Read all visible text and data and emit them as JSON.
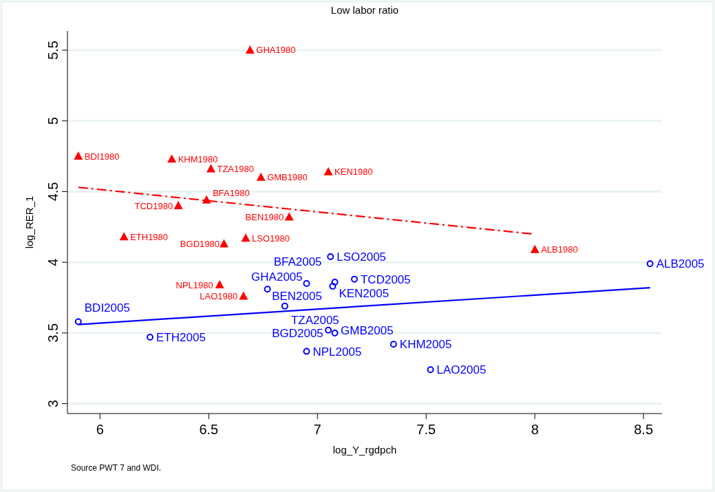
{
  "chart_data": {
    "type": "scatter",
    "title": "Low labor ratio",
    "xlabel": "log_Y_rgdpch",
    "ylabel": "log_RER_1",
    "annotations": [
      "Source PWT 7 and WDI."
    ],
    "xlim": [
      5.85,
      8.585
    ],
    "xticks": [
      6,
      6.5,
      7,
      7.5,
      8,
      8.5
    ],
    "ylim": [
      2.93,
      5.636
    ],
    "yticks": [
      3,
      3.5,
      4,
      4.5,
      5,
      5.5
    ],
    "grid": "y",
    "series": [
      {
        "color": "#ff0000",
        "marker": "triangle",
        "x": [
          6.69,
          5.9,
          6.33,
          6.51,
          6.74,
          7.05,
          6.49,
          6.36,
          6.87,
          6.11,
          6.67,
          6.57,
          8.0,
          6.55,
          6.66
        ],
        "values": [
          5.5,
          4.75,
          4.73,
          4.66,
          4.6,
          4.64,
          4.44,
          4.4,
          4.32,
          4.18,
          4.17,
          4.13,
          4.09,
          3.84,
          3.76
        ],
        "value_labels": [
          "GHA1980",
          "BDI1980",
          "KHM1980",
          "TZA1980",
          "GMB1980",
          "KEN1980",
          "BFA1980",
          "TCD1980",
          "BEN1980",
          "ETH1980",
          "LSO1980",
          "BGD1980",
          "ALB1980",
          "NPL1980",
          "LAO1980"
        ]
      },
      {
        "color": "#0000ff",
        "marker": "circle",
        "x": [
          7.06,
          8.53,
          6.95,
          7.07,
          7.08,
          7.17,
          6.77,
          6.85,
          5.9,
          7.05,
          7.08,
          6.23,
          7.35,
          6.95,
          7.52
        ],
        "values": [
          4.04,
          3.99,
          3.85,
          3.83,
          3.86,
          3.88,
          3.81,
          3.69,
          3.58,
          3.52,
          3.5,
          3.47,
          3.42,
          3.37,
          3.24
        ],
        "value_labels": [
          "LSO2005",
          "ALB2005",
          "GHA2005",
          "KEN2005",
          "BEN2005",
          "TCD2005",
          "BFA2005",
          "TZA2005",
          "BDI2005",
          "GMB2005",
          "BGD2005",
          "ETH2005",
          "KHM2005",
          "NPL2005",
          "LAO2005"
        ]
      },
      {
        "type": "line",
        "color": "#ff0000",
        "line_style": "dashed",
        "x": [
          5.9,
          7.99
        ],
        "values": [
          4.53,
          4.2
        ]
      },
      {
        "type": "line",
        "color": "#0000ff",
        "line_style": "solid",
        "x": [
          5.9,
          8.53
        ],
        "values": [
          3.56,
          3.82
        ]
      }
    ]
  }
}
